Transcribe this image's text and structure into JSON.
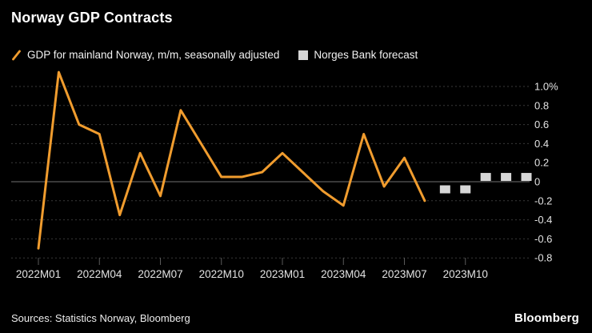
{
  "title": "Norway GDP Contracts",
  "legend": {
    "series1_label": "GDP for mainland Norway, m/m, seasonally adjusted",
    "series2_label": "Norges Bank forecast"
  },
  "footer": {
    "sources": "Sources: Statistics Norway, Bloomberg",
    "brand": "Bloomberg"
  },
  "colors": {
    "background": "#000000",
    "line": "#F09C2E",
    "forecast": "#D6D6D6",
    "grid": "#3A3A3A",
    "zero_line": "#707070",
    "tick": "#5A5A5A",
    "axis_text": "#E3E3E3",
    "title_text": "#FFFFFF"
  },
  "chart_data": {
    "type": "line",
    "title": "Norway GDP Contracts",
    "xlabel": "",
    "ylabel": "",
    "ylim": [
      -0.85,
      1.2
    ],
    "grid": "horizontal-dotted",
    "legend_position": "top",
    "y_ticks": [
      1.0,
      0.8,
      0.6,
      0.4,
      0.2,
      0,
      -0.2,
      -0.4,
      -0.6,
      -0.8
    ],
    "y_tick_labels": [
      "1.0%",
      "0.8",
      "0.6",
      "0.4",
      "0.2",
      "0",
      "-0.2",
      "-0.4",
      "-0.6",
      "-0.8"
    ],
    "x_tick_labels": [
      "2022M01",
      "2022M04",
      "2022M07",
      "2022M10",
      "2023M01",
      "2023M04",
      "2023M07",
      "2023M10"
    ],
    "series": [
      {
        "name": "GDP for mainland Norway, m/m, seasonally adjusted",
        "style": "line",
        "months": [
          "2022M01",
          "2022M02",
          "2022M03",
          "2022M04",
          "2022M05",
          "2022M06",
          "2022M07",
          "2022M08",
          "2022M09",
          "2022M10",
          "2022M11",
          "2022M12",
          "2023M01",
          "2023M02",
          "2023M03",
          "2023M04",
          "2023M05",
          "2023M06",
          "2023M07",
          "2023M08"
        ],
        "values": [
          -0.7,
          1.15,
          0.6,
          0.5,
          -0.35,
          0.3,
          -0.15,
          0.75,
          0.4,
          0.05,
          0.05,
          0.1,
          0.3,
          0.1,
          -0.1,
          -0.25,
          0.5,
          -0.05,
          0.25,
          -0.2
        ]
      },
      {
        "name": "Norges Bank forecast",
        "style": "squares",
        "months": [
          "2023M09",
          "2023M10",
          "2023M11",
          "2023M12",
          "2024M01"
        ],
        "values": [
          -0.08,
          -0.08,
          0.05,
          0.05,
          0.05
        ]
      }
    ]
  }
}
